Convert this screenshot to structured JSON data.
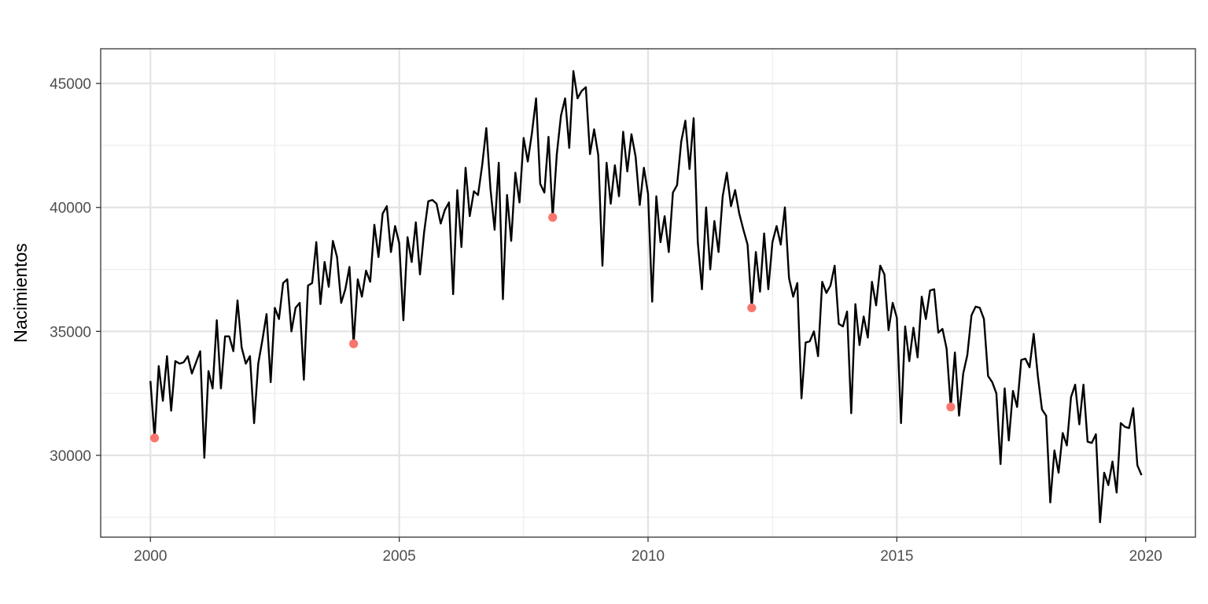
{
  "chart_data": {
    "type": "line",
    "title": "",
    "xlabel": "",
    "ylabel": "Nacimientos",
    "xlim": [
      2000,
      2020
    ],
    "ylim": [
      26700,
      46400
    ],
    "x_ticks": [
      2000,
      2005,
      2010,
      2015,
      2020
    ],
    "y_ticks": [
      30000,
      35000,
      40000,
      45000
    ],
    "grid": true,
    "legend": "none",
    "line_color": "#000000",
    "highlight_color": "#F8766D",
    "series": [
      {
        "x_start": 2000.0,
        "x_step": 0.0833333,
        "values": [
          33000,
          30700,
          33600,
          32200,
          34000,
          31800,
          33800,
          33700,
          33750,
          34000,
          33300,
          33750,
          34200,
          29900,
          33400,
          32700,
          35450,
          32700,
          34800,
          34800,
          34200,
          36250,
          34350,
          33700,
          34000,
          31300,
          33700,
          34650,
          35700,
          32950,
          35950,
          35500,
          36950,
          37100,
          35000,
          35950,
          36150,
          33050,
          36850,
          36950,
          38600,
          36100,
          37800,
          36800,
          38650,
          38000,
          36150,
          36700,
          37600,
          34500,
          37100,
          36400,
          37450,
          37000,
          39300,
          38000,
          39750,
          40050,
          38200,
          39250,
          38550,
          35450,
          38800,
          37800,
          39400,
          37300,
          39000,
          40250,
          40300,
          40150,
          39350,
          39900,
          40200,
          36500,
          40700,
          38400,
          41600,
          39650,
          40650,
          40500,
          41700,
          43200,
          40750,
          39100,
          41800,
          36300,
          40500,
          38650,
          41400,
          40200,
          42800,
          41850,
          43000,
          44400,
          40950,
          40600,
          42850,
          39600,
          42150,
          43700,
          44400,
          42400,
          45500,
          44400,
          44700,
          44850,
          42150,
          43150,
          42100,
          37650,
          41800,
          40150,
          41700,
          40450,
          43050,
          41450,
          42950,
          42050,
          40100,
          41600,
          40550,
          36200,
          40450,
          38600,
          39650,
          38200,
          40600,
          40900,
          42650,
          43500,
          41550,
          43600,
          38600,
          36700,
          40000,
          37500,
          39450,
          38200,
          40450,
          41400,
          40050,
          40700,
          39750,
          39100,
          38500,
          35950,
          38200,
          36600,
          38950,
          36700,
          38600,
          39250,
          38500,
          40000,
          37150,
          36400,
          36950,
          32300,
          34550,
          34600,
          35000,
          34000,
          37000,
          36550,
          36850,
          37650,
          35300,
          35200,
          35800,
          31700,
          36100,
          34450,
          35600,
          34750,
          37000,
          36050,
          37650,
          37300,
          35050,
          36150,
          35550,
          31300,
          35200,
          33800,
          35150,
          33950,
          36400,
          35500,
          36650,
          36700,
          34950,
          35100,
          34300,
          31950,
          34150,
          31600,
          33300,
          34050,
          35650,
          36000,
          35950,
          35500,
          33200,
          32950,
          32500,
          29650,
          32700,
          30600,
          32600,
          31950,
          33850,
          33900,
          33550,
          34900,
          33200,
          31850,
          31600,
          28100,
          30200,
          29300,
          30900,
          30400,
          32350,
          32850,
          31250,
          32850,
          30550,
          30500,
          30850,
          27300,
          29300,
          28800,
          29750,
          28500,
          31300,
          31150,
          31100,
          31900,
          29600,
          29200
        ]
      }
    ],
    "highlighted_points": [
      {
        "x": 2000.0833,
        "y": 30700
      },
      {
        "x": 2004.0833,
        "y": 34500
      },
      {
        "x": 2008.0833,
        "y": 39600
      },
      {
        "x": 2012.0833,
        "y": 35950
      },
      {
        "x": 2016.0833,
        "y": 31950
      }
    ]
  }
}
